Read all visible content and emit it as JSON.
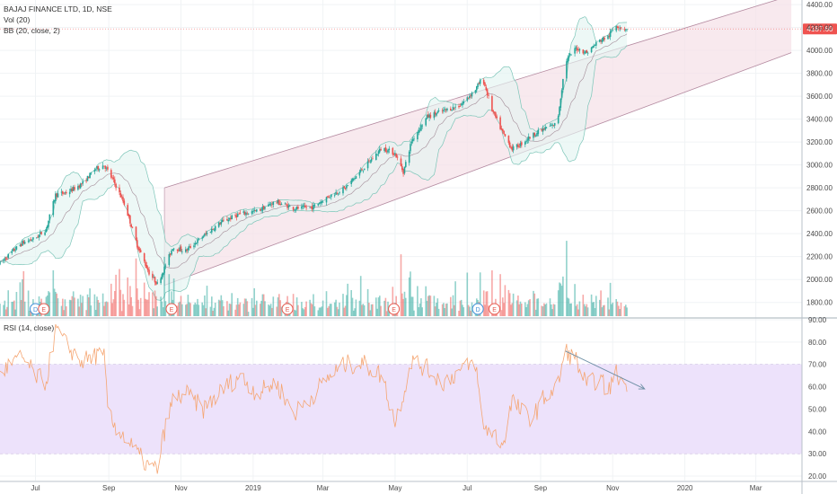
{
  "chart_data": {
    "type": "candlestick",
    "symbol_label": "BAJAJ FINANCE LTD, 1D, NSE",
    "indicators": [
      "Vol (20)",
      "BB (20, close, 2)"
    ],
    "rsi_label": "RSI (14, close)",
    "last_price_label": "4187.60",
    "price_axis": {
      "min": 1680,
      "max": 4440,
      "ticks": [
        "4400.00",
        "4200.00",
        "4000.00",
        "3800.00",
        "3600.00",
        "3400.00",
        "3200.00",
        "3000.00",
        "2800.00",
        "2600.00",
        "2400.00",
        "2200.00",
        "2000.00",
        "1800.00"
      ]
    },
    "rsi_axis": {
      "min": 18,
      "max": 90,
      "ticks": [
        "90.00",
        "80.00",
        "70.00",
        "60.00",
        "50.00",
        "40.00",
        "30.00",
        "20.00"
      ],
      "band": [
        30,
        70
      ]
    },
    "x_labels": [
      {
        "date": "2018-07-01",
        "label": "Jul"
      },
      {
        "date": "2018-09-01",
        "label": "Sep"
      },
      {
        "date": "2018-11-01",
        "label": "Nov"
      },
      {
        "date": "2019-01-01",
        "label": "2019"
      },
      {
        "date": "2019-03-01",
        "label": "Mar"
      },
      {
        "date": "2019-05-01",
        "label": "May"
      },
      {
        "date": "2019-07-01",
        "label": "Jul"
      },
      {
        "date": "2019-09-01",
        "label": "Sep"
      },
      {
        "date": "2019-11-01",
        "label": "Nov"
      },
      {
        "date": "2020-01-01",
        "label": "2020"
      },
      {
        "date": "2020-03-01",
        "label": "Mar"
      }
    ],
    "price_path": [
      [
        "2018-06-01",
        2140
      ],
      [
        "2018-06-10",
        2230
      ],
      [
        "2018-06-20",
        2320
      ],
      [
        "2018-07-01",
        2360
      ],
      [
        "2018-07-10",
        2440
      ],
      [
        "2018-07-18",
        2740
      ],
      [
        "2018-07-28",
        2760
      ],
      [
        "2018-08-10",
        2840
      ],
      [
        "2018-08-20",
        2960
      ],
      [
        "2018-08-28",
        3000
      ],
      [
        "2018-09-05",
        2860
      ],
      [
        "2018-09-15",
        2640
      ],
      [
        "2018-09-25",
        2300
      ],
      [
        "2018-10-05",
        2060
      ],
      [
        "2018-10-12",
        1960
      ],
      [
        "2018-10-18",
        2100
      ],
      [
        "2018-10-25",
        2280
      ],
      [
        "2018-11-05",
        2250
      ],
      [
        "2018-11-20",
        2380
      ],
      [
        "2018-12-05",
        2500
      ],
      [
        "2018-12-20",
        2570
      ],
      [
        "2019-01-05",
        2600
      ],
      [
        "2019-01-20",
        2680
      ],
      [
        "2019-02-05",
        2620
      ],
      [
        "2019-02-20",
        2630
      ],
      [
        "2019-03-05",
        2720
      ],
      [
        "2019-03-20",
        2800
      ],
      [
        "2019-04-05",
        2980
      ],
      [
        "2019-04-20",
        3150
      ],
      [
        "2019-05-01",
        3100
      ],
      [
        "2019-05-08",
        2940
      ],
      [
        "2019-05-15",
        3210
      ],
      [
        "2019-05-28",
        3420
      ],
      [
        "2019-06-10",
        3470
      ],
      [
        "2019-06-25",
        3520
      ],
      [
        "2019-07-08",
        3660
      ],
      [
        "2019-07-14",
        3760
      ],
      [
        "2019-07-22",
        3480
      ],
      [
        "2019-07-31",
        3280
      ],
      [
        "2019-08-08",
        3140
      ],
      [
        "2019-08-15",
        3180
      ],
      [
        "2019-08-25",
        3260
      ],
      [
        "2019-09-05",
        3320
      ],
      [
        "2019-09-15",
        3360
      ],
      [
        "2019-09-22",
        3900
      ],
      [
        "2019-10-01",
        4020
      ],
      [
        "2019-10-10",
        3980
      ],
      [
        "2019-10-20",
        4080
      ],
      [
        "2019-10-28",
        4120
      ],
      [
        "2019-11-04",
        4220
      ],
      [
        "2019-11-10",
        4190
      ],
      [
        "2019-11-13",
        4188
      ]
    ],
    "last_price": 4187.6,
    "channel": {
      "upper": [
        [
          "2018-10-18",
          2800
        ],
        [
          "2020-03-31",
          4480
        ]
      ],
      "lower": [
        [
          "2018-10-18",
          1950
        ],
        [
          "2020-03-31",
          3980
        ]
      ]
    },
    "rsi_path": [
      [
        "2018-06-01",
        66
      ],
      [
        "2018-06-10",
        70
      ],
      [
        "2018-06-20",
        73
      ],
      [
        "2018-07-01",
        65
      ],
      [
        "2018-07-10",
        62
      ],
      [
        "2018-07-18",
        86
      ],
      [
        "2018-07-28",
        78
      ],
      [
        "2018-08-10",
        71
      ],
      [
        "2018-08-20",
        74
      ],
      [
        "2018-08-28",
        73
      ],
      [
        "2018-09-01",
        46
      ],
      [
        "2018-09-15",
        37
      ],
      [
        "2018-09-25",
        30
      ],
      [
        "2018-10-05",
        24
      ],
      [
        "2018-10-12",
        23
      ],
      [
        "2018-10-18",
        40
      ],
      [
        "2018-10-25",
        54
      ],
      [
        "2018-11-05",
        57
      ],
      [
        "2018-11-20",
        50
      ],
      [
        "2018-12-05",
        58
      ],
      [
        "2018-12-20",
        65
      ],
      [
        "2019-01-05",
        57
      ],
      [
        "2019-01-20",
        62
      ],
      [
        "2019-02-05",
        48
      ],
      [
        "2019-02-20",
        56
      ],
      [
        "2019-03-05",
        64
      ],
      [
        "2019-03-20",
        70
      ],
      [
        "2019-04-05",
        70
      ],
      [
        "2019-04-20",
        65
      ],
      [
        "2019-05-01",
        44
      ],
      [
        "2019-05-08",
        57
      ],
      [
        "2019-05-15",
        72
      ],
      [
        "2019-05-28",
        68
      ],
      [
        "2019-06-10",
        62
      ],
      [
        "2019-06-25",
        67
      ],
      [
        "2019-07-08",
        71
      ],
      [
        "2019-07-14",
        42
      ],
      [
        "2019-07-22",
        40
      ],
      [
        "2019-07-31",
        34
      ],
      [
        "2019-08-08",
        54
      ],
      [
        "2019-08-15",
        49
      ],
      [
        "2019-08-25",
        46
      ],
      [
        "2019-09-05",
        56
      ],
      [
        "2019-09-15",
        59
      ],
      [
        "2019-09-22",
        76
      ],
      [
        "2019-10-01",
        72
      ],
      [
        "2019-10-10",
        60
      ],
      [
        "2019-10-20",
        64
      ],
      [
        "2019-10-28",
        58
      ],
      [
        "2019-11-04",
        66
      ],
      [
        "2019-11-10",
        61
      ],
      [
        "2019-11-13",
        62
      ]
    ],
    "rsi_trendline": [
      [
        "2019-09-22",
        76
      ],
      [
        "2019-11-28",
        59
      ]
    ],
    "event_markers": [
      {
        "date": "2018-07-01",
        "label": "D"
      },
      {
        "date": "2018-07-08",
        "label": "E"
      },
      {
        "date": "2018-10-24",
        "label": "E"
      },
      {
        "date": "2019-01-30",
        "label": "E"
      },
      {
        "date": "2019-04-30",
        "label": "E"
      },
      {
        "date": "2019-07-10",
        "label": "D"
      },
      {
        "date": "2019-07-24",
        "label": "E"
      }
    ],
    "colors": {
      "up": "#26a69a",
      "down": "#ef5350",
      "rsi_line": "#f5a673",
      "rsi_band": "#ede2fb",
      "bb_fill": "#e3f4f1",
      "bb_line": "#7cc5b8",
      "channel_fill": "#f5e2e8",
      "channel_line": "#b48aa0",
      "trendline": "#6d8fa5",
      "price_badge": "#ef5350"
    }
  }
}
